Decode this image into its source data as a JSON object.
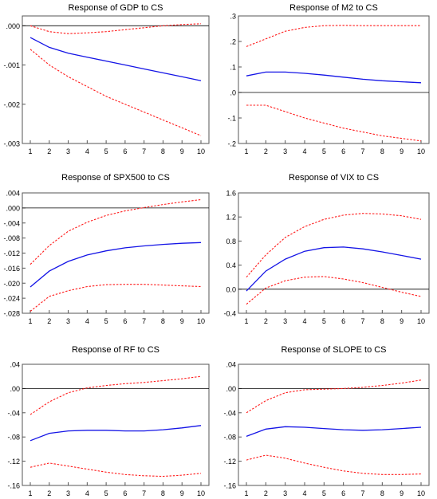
{
  "colors": {
    "response": "#1414e6",
    "band": "#ff1a1a",
    "zero": "#000000",
    "frame": "#555555"
  },
  "chart_data": [
    {
      "type": "line",
      "title": "Response of GDP to CS",
      "x": [
        1,
        2,
        3,
        4,
        5,
        6,
        7,
        8,
        9,
        10
      ],
      "ylim": [
        -0.003,
        0.00025
      ],
      "yticks": [
        0.0,
        -0.001,
        -0.002,
        -0.003
      ],
      "ytick_labels": [
        ".000",
        "-.001",
        "-.002",
        "-.003"
      ],
      "series": [
        {
          "role": "response",
          "values": [
            -0.0003,
            -0.00055,
            -0.0007,
            -0.0008,
            -0.0009,
            -0.001,
            -0.0011,
            -0.0012,
            -0.0013,
            -0.0014
          ]
        },
        {
          "role": "upper",
          "values": [
            0.0,
            -0.00015,
            -0.0002,
            -0.00018,
            -0.00015,
            -0.0001,
            -5e-05,
            0.0,
            3e-05,
            5e-05
          ]
        },
        {
          "role": "lower",
          "values": [
            -0.0006,
            -0.001,
            -0.0013,
            -0.00155,
            -0.0018,
            -0.002,
            -0.0022,
            -0.0024,
            -0.0026,
            -0.0028
          ]
        }
      ]
    },
    {
      "type": "line",
      "title": "Response of M2 to CS",
      "x": [
        1,
        2,
        3,
        4,
        5,
        6,
        7,
        8,
        9,
        10
      ],
      "ylim": [
        -0.2,
        0.3
      ],
      "yticks": [
        0.3,
        0.2,
        0.1,
        0.0,
        -0.1,
        -0.2
      ],
      "ytick_labels": [
        ".3",
        ".2",
        ".1",
        ".0",
        "-.1",
        "-.2"
      ],
      "series": [
        {
          "role": "response",
          "values": [
            0.065,
            0.08,
            0.08,
            0.075,
            0.068,
            0.06,
            0.052,
            0.046,
            0.042,
            0.038
          ]
        },
        {
          "role": "upper",
          "values": [
            0.18,
            0.21,
            0.24,
            0.255,
            0.262,
            0.263,
            0.262,
            0.262,
            0.262,
            0.262
          ]
        },
        {
          "role": "lower",
          "values": [
            -0.05,
            -0.05,
            -0.075,
            -0.1,
            -0.12,
            -0.14,
            -0.155,
            -0.17,
            -0.18,
            -0.19
          ]
        }
      ]
    },
    {
      "type": "line",
      "title": "Response of SPX500 to CS",
      "x": [
        1,
        2,
        3,
        4,
        5,
        6,
        7,
        8,
        9,
        10
      ],
      "ylim": [
        -0.028,
        0.004
      ],
      "yticks": [
        0.004,
        0.0,
        -0.004,
        -0.008,
        -0.012,
        -0.016,
        -0.02,
        -0.024,
        -0.028
      ],
      "ytick_labels": [
        ".004",
        ".000",
        "-.004",
        "-.008",
        "-.012",
        "-.016",
        "-.020",
        "-.024",
        "-.028"
      ],
      "series": [
        {
          "role": "response",
          "values": [
            -0.021,
            -0.0168,
            -0.0142,
            -0.0125,
            -0.0114,
            -0.0106,
            -0.0101,
            -0.0097,
            -0.0094,
            -0.0092
          ]
        },
        {
          "role": "upper",
          "values": [
            -0.015,
            -0.01,
            -0.0062,
            -0.0038,
            -0.002,
            -0.0008,
            0.0001,
            0.0009,
            0.0016,
            0.0022
          ]
        },
        {
          "role": "lower",
          "values": [
            -0.0275,
            -0.0235,
            -0.022,
            -0.0209,
            -0.0204,
            -0.0203,
            -0.0203,
            -0.0205,
            -0.0207,
            -0.0209
          ]
        }
      ]
    },
    {
      "type": "line",
      "title": "Response of VIX to CS",
      "x": [
        1,
        2,
        3,
        4,
        5,
        6,
        7,
        8,
        9,
        10
      ],
      "ylim": [
        -0.4,
        1.6
      ],
      "yticks": [
        1.6,
        1.2,
        0.8,
        0.4,
        0.0,
        -0.4
      ],
      "ytick_labels": [
        "1.6",
        "1.2",
        "0.8",
        "0.4",
        "0.0",
        "-0.4"
      ],
      "series": [
        {
          "role": "response",
          "values": [
            -0.03,
            0.3,
            0.5,
            0.63,
            0.69,
            0.7,
            0.67,
            0.62,
            0.56,
            0.5
          ]
        },
        {
          "role": "upper",
          "values": [
            0.2,
            0.57,
            0.86,
            1.04,
            1.16,
            1.23,
            1.26,
            1.25,
            1.22,
            1.16
          ]
        },
        {
          "role": "lower",
          "values": [
            -0.25,
            0.02,
            0.14,
            0.2,
            0.21,
            0.17,
            0.11,
            0.03,
            -0.05,
            -0.12
          ]
        }
      ]
    },
    {
      "type": "line",
      "title": "Response of RF to CS",
      "x": [
        1,
        2,
        3,
        4,
        5,
        6,
        7,
        8,
        9,
        10
      ],
      "ylim": [
        -0.16,
        0.04
      ],
      "yticks": [
        0.04,
        0.0,
        -0.04,
        -0.08,
        -0.12,
        -0.16
      ],
      "ytick_labels": [
        ".04",
        ".00",
        "-.04",
        "-.08",
        "-.12",
        "-.16"
      ],
      "series": [
        {
          "role": "response",
          "values": [
            -0.086,
            -0.074,
            -0.07,
            -0.069,
            -0.069,
            -0.07,
            -0.07,
            -0.068,
            -0.065,
            -0.061
          ]
        },
        {
          "role": "upper",
          "values": [
            -0.043,
            -0.022,
            -0.007,
            0.001,
            0.005,
            0.008,
            0.01,
            0.013,
            0.016,
            0.02
          ]
        },
        {
          "role": "lower",
          "values": [
            -0.13,
            -0.123,
            -0.128,
            -0.133,
            -0.138,
            -0.142,
            -0.144,
            -0.145,
            -0.143,
            -0.14
          ]
        }
      ]
    },
    {
      "type": "line",
      "title": "Response of SLOPE to CS",
      "x": [
        1,
        2,
        3,
        4,
        5,
        6,
        7,
        8,
        9,
        10
      ],
      "ylim": [
        -0.16,
        0.04
      ],
      "yticks": [
        0.04,
        0.0,
        -0.04,
        -0.08,
        -0.12,
        -0.16
      ],
      "ytick_labels": [
        ".04",
        ".00",
        "-.04",
        "-.08",
        "-.12",
        "-.16"
      ],
      "series": [
        {
          "role": "response",
          "values": [
            -0.079,
            -0.067,
            -0.063,
            -0.064,
            -0.066,
            -0.068,
            -0.069,
            -0.068,
            -0.066,
            -0.064
          ]
        },
        {
          "role": "upper",
          "values": [
            -0.04,
            -0.02,
            -0.007,
            -0.002,
            -0.001,
            0.0,
            0.002,
            0.005,
            0.009,
            0.014
          ]
        },
        {
          "role": "lower",
          "values": [
            -0.118,
            -0.11,
            -0.115,
            -0.123,
            -0.13,
            -0.136,
            -0.14,
            -0.142,
            -0.142,
            -0.141
          ]
        }
      ]
    }
  ]
}
